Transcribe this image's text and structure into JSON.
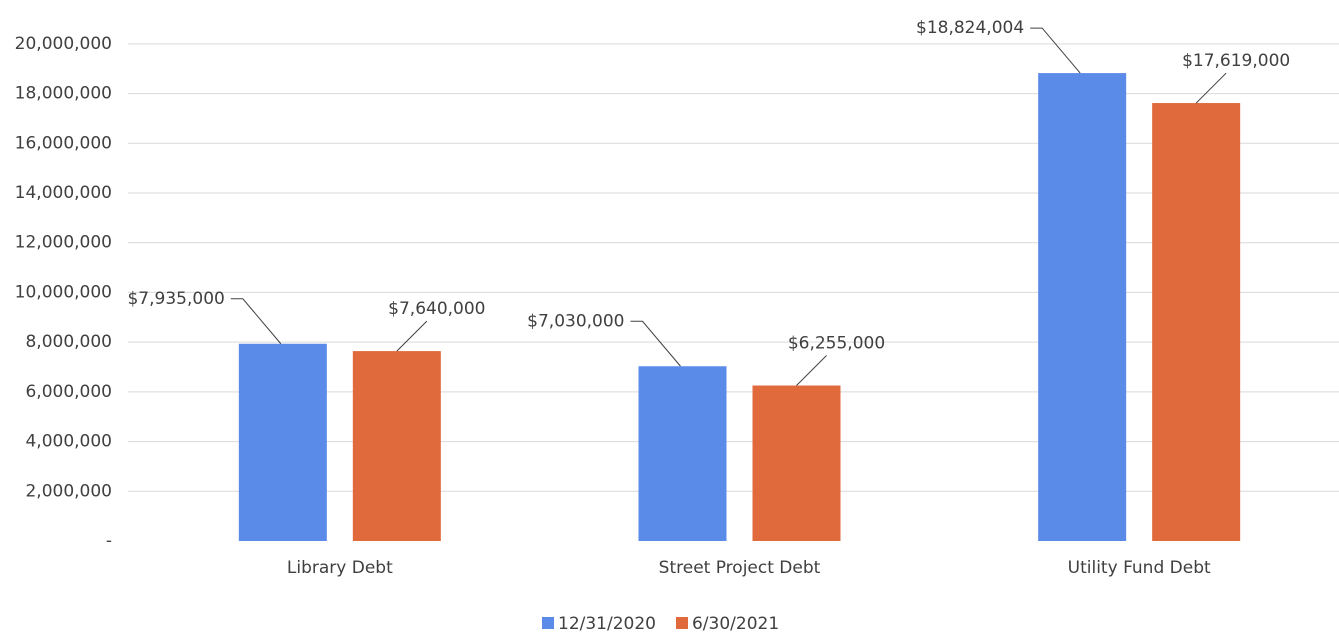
{
  "chart_data": {
    "type": "bar",
    "categories": [
      "Library Debt",
      "Street Project Debt",
      "Utility Fund Debt"
    ],
    "series": [
      {
        "name": "12/31/2020",
        "color": "#5b8be8",
        "values": [
          7935000,
          7030000,
          18824004
        ],
        "value_labels": [
          "$7,935,000",
          "$7,030,000",
          "$18,824,004"
        ]
      },
      {
        "name": "6/30/2021",
        "color": "#e06a3c",
        "values": [
          7640000,
          6255000,
          17619000
        ],
        "value_labels": [
          "$7,640,000",
          "$6,255,000",
          "$17,619,000"
        ]
      }
    ],
    "ylim": [
      0,
      21000000
    ],
    "yticks": [
      {
        "value": 0,
        "label": "-"
      },
      {
        "value": 2000000,
        "label": "2,000,000"
      },
      {
        "value": 4000000,
        "label": "4,000,000"
      },
      {
        "value": 6000000,
        "label": "6,000,000"
      },
      {
        "value": 8000000,
        "label": "8,000,000"
      },
      {
        "value": 10000000,
        "label": "10,000,000"
      },
      {
        "value": 12000000,
        "label": "12,000,000"
      },
      {
        "value": 14000000,
        "label": "14,000,000"
      },
      {
        "value": 16000000,
        "label": "16,000,000"
      },
      {
        "value": 18000000,
        "label": "18,000,000"
      },
      {
        "value": 20000000,
        "label": "20,000,000"
      }
    ],
    "grid": true,
    "legend": "bottom"
  }
}
